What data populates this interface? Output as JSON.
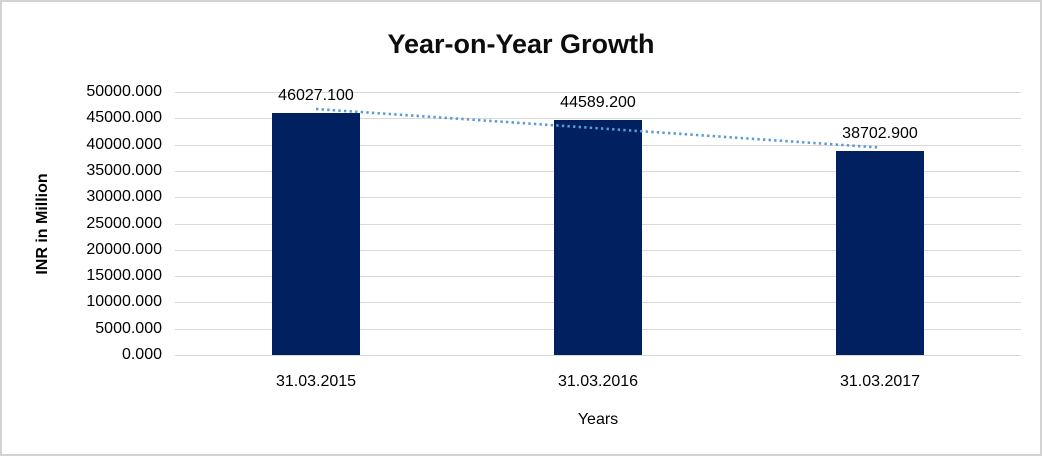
{
  "chart_data": {
    "type": "bar",
    "title": "Year-on-Year Growth",
    "xlabel": "Years",
    "ylabel": "INR in Million",
    "categories": [
      "31.03.2015",
      "31.03.2016",
      "31.03.2017"
    ],
    "values": [
      46027.1,
      44589.2,
      38702.9
    ],
    "data_labels": [
      "46027.100",
      "44589.200",
      "38702.900"
    ],
    "y_ticks": [
      "50000.000",
      "45000.000",
      "40000.000",
      "35000.000",
      "30000.000",
      "25000.000",
      "20000.000",
      "15000.000",
      "10000.000",
      "5000.000",
      "0.000"
    ],
    "ylim": [
      0,
      50000
    ],
    "y_tick_step": 5000,
    "grid": true,
    "legend_position": "none",
    "trendline": {
      "type": "linear",
      "style": "dotted"
    },
    "colors": {
      "bar": "#002060",
      "trendline": "#5B9BD5",
      "gridline": "#D9D9D9",
      "text": "#000000",
      "title": "#0D0D0D",
      "frame_border": "#D3D3D3",
      "background": "#FFFFFF"
    }
  }
}
